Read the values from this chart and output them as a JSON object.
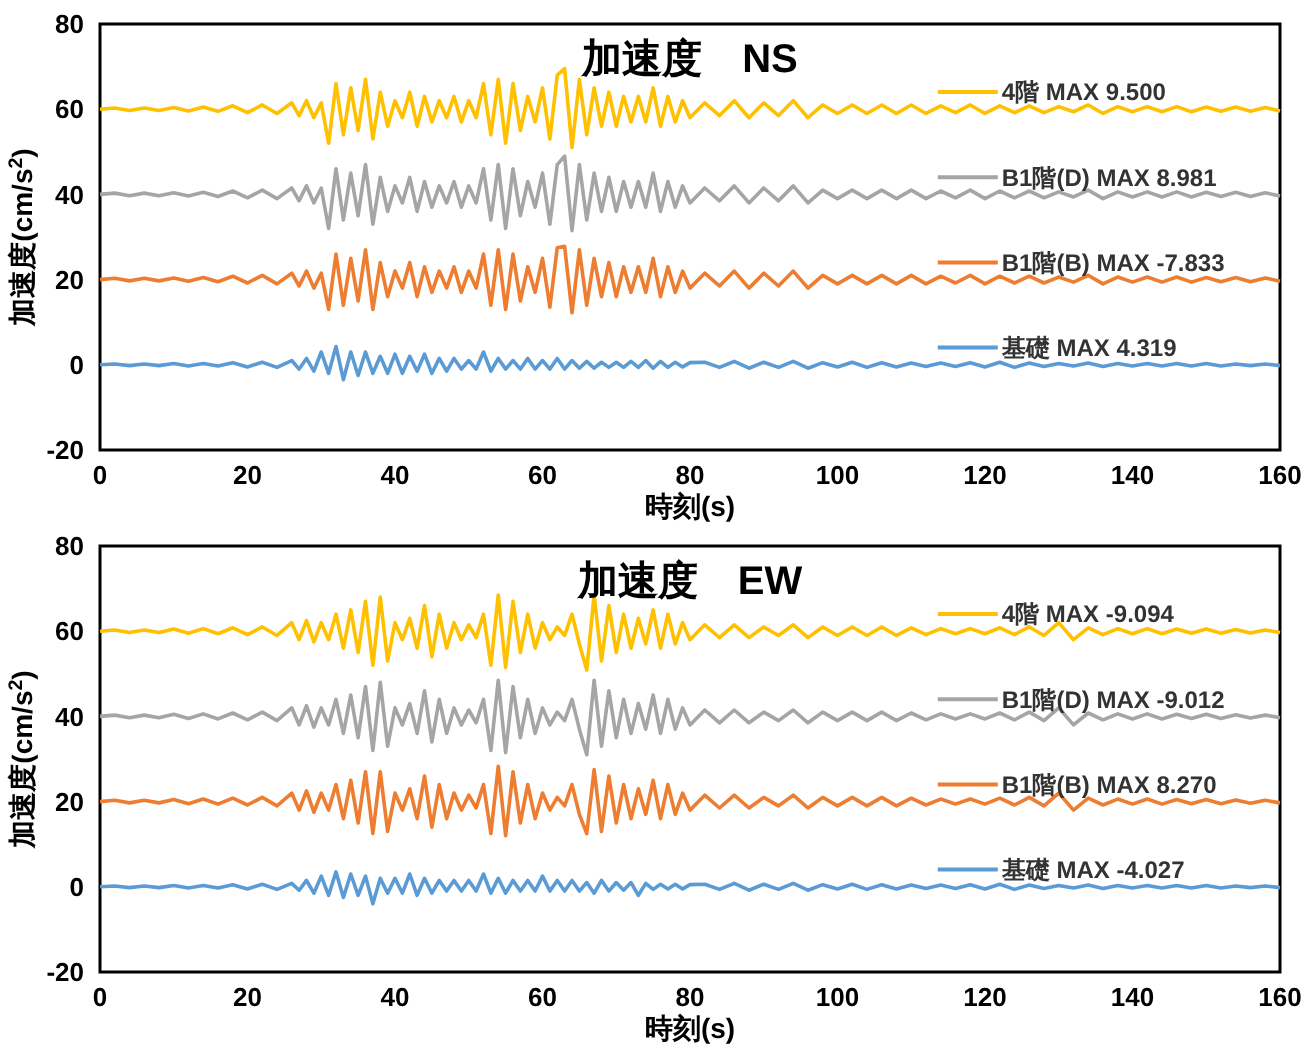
{
  "chart_data": [
    {
      "type": "line",
      "title": "加速度　NS",
      "xlabel": "時刻(s)",
      "ylabel": "加速度(cm/s$^{2}$)",
      "xlim": [
        0,
        160
      ],
      "xticks": [
        0,
        20,
        40,
        60,
        80,
        100,
        120,
        140,
        160
      ],
      "ylim": [
        -20,
        80
      ],
      "yticks": [
        -20,
        0,
        20,
        40,
        60,
        80
      ],
      "grid": false,
      "legend": "right",
      "marker": "none",
      "line_style": "solid",
      "x": [
        0,
        2,
        4,
        6,
        8,
        10,
        12,
        14,
        16,
        18,
        20,
        22,
        24,
        26,
        27,
        28,
        29,
        30,
        31,
        32,
        33,
        34,
        35,
        36,
        37,
        38,
        39,
        40,
        41,
        42,
        43,
        44,
        45,
        46,
        47,
        48,
        49,
        50,
        51,
        52,
        53,
        54,
        55,
        56,
        57,
        58,
        59,
        60,
        61,
        62,
        63,
        64,
        65,
        66,
        67,
        68,
        69,
        70,
        71,
        72,
        73,
        74,
        75,
        76,
        77,
        78,
        79,
        80,
        82,
        84,
        86,
        88,
        90,
        92,
        94,
        96,
        98,
        100,
        102,
        104,
        106,
        108,
        110,
        112,
        114,
        116,
        118,
        120,
        122,
        124,
        126,
        128,
        130,
        132,
        134,
        136,
        138,
        140,
        142,
        144,
        146,
        148,
        150,
        152,
        154,
        156,
        158,
        160
      ],
      "series": [
        {
          "name": "4階 MAX 9.500",
          "color": "#ffc000",
          "values": [
            60,
            60.3,
            59.7,
            60.3,
            59.7,
            60.4,
            59.6,
            60.5,
            59.5,
            60.8,
            59.2,
            61,
            59,
            61.5,
            58.5,
            62,
            58,
            61.5,
            52,
            66,
            54,
            65,
            55,
            67,
            53,
            64,
            56,
            62,
            58,
            64,
            56,
            63,
            57,
            62,
            58,
            63,
            57,
            62,
            58,
            66,
            54,
            67,
            52,
            66,
            55,
            63,
            57,
            65,
            53,
            68,
            69.5,
            51,
            67,
            54,
            65,
            56,
            64,
            56,
            63,
            57,
            63,
            57,
            65,
            56,
            63,
            57,
            62,
            58,
            61.5,
            58.5,
            62,
            58,
            61.5,
            58.5,
            62,
            58,
            61,
            59,
            61,
            59,
            61,
            59,
            61,
            59,
            60.8,
            59.2,
            61,
            59,
            60.8,
            59.2,
            60.8,
            59.2,
            60.6,
            59.4,
            61,
            59,
            60.6,
            59.4,
            60.6,
            59.4,
            60.6,
            59.4,
            60.5,
            59.5,
            60.5,
            59.5,
            60.4,
            59.6
          ]
        },
        {
          "name": "B1階(D) MAX 8.981",
          "color": "#a5a5a5",
          "values": [
            40,
            40.3,
            39.7,
            40.3,
            39.7,
            40.4,
            39.6,
            40.5,
            39.5,
            40.8,
            39.2,
            41,
            39,
            41.5,
            38.5,
            42,
            38,
            41.5,
            32,
            46,
            34,
            45,
            35,
            47,
            33,
            44,
            36,
            42,
            38,
            44,
            36,
            43,
            37,
            42,
            38,
            43,
            37,
            42,
            38,
            46,
            34,
            47,
            32,
            46,
            35,
            43,
            37,
            45,
            33,
            47,
            49,
            31.5,
            47,
            34,
            45,
            36,
            44,
            36,
            43,
            37,
            43,
            37,
            45,
            36,
            43,
            37,
            42,
            38,
            41.5,
            38.5,
            42,
            38,
            41.5,
            38.5,
            42,
            38,
            41,
            39,
            41,
            39,
            41,
            39,
            41,
            39,
            40.8,
            39.2,
            41,
            39,
            40.8,
            39.2,
            40.8,
            39.2,
            40.6,
            39.4,
            41,
            39,
            40.6,
            39.4,
            40.6,
            39.4,
            40.6,
            39.4,
            40.5,
            39.5,
            40.5,
            39.5,
            40.4,
            39.6
          ]
        },
        {
          "name": "B1階(B) MAX -7.833",
          "color": "#ed7d31",
          "values": [
            20,
            20.3,
            19.7,
            20.3,
            19.7,
            20.4,
            19.6,
            20.5,
            19.5,
            20.8,
            19.2,
            21,
            19,
            21.5,
            18.5,
            22,
            18,
            21.5,
            13,
            26,
            14,
            25,
            15,
            27,
            13,
            24,
            16,
            22,
            18,
            24,
            16,
            23,
            17,
            22,
            18,
            23,
            17,
            22,
            18,
            26,
            14,
            27,
            13,
            26,
            15,
            23,
            17,
            25,
            13.5,
            27.5,
            27.8,
            12.2,
            27,
            14,
            25,
            16,
            24,
            16,
            23,
            17,
            23,
            17,
            25,
            16,
            23,
            17,
            22,
            18,
            21.5,
            18.5,
            22,
            18,
            21.5,
            18.5,
            22,
            18,
            21,
            19,
            21,
            19,
            21,
            19,
            21,
            19,
            20.8,
            19.2,
            21,
            19,
            20.8,
            19.2,
            20.8,
            19.2,
            20.6,
            19.4,
            21,
            19,
            20.6,
            19.4,
            20.6,
            19.4,
            20.6,
            19.4,
            20.5,
            19.5,
            20.5,
            19.5,
            20.4,
            19.6
          ]
        },
        {
          "name": "基礎 MAX 4.319",
          "color": "#5b9bd5",
          "values": [
            0,
            0.2,
            -0.2,
            0.2,
            -0.2,
            0.3,
            -0.3,
            0.3,
            -0.3,
            0.5,
            -0.5,
            0.6,
            -0.6,
            1,
            -1,
            1.5,
            -1.5,
            3,
            -2,
            4.3,
            -3.5,
            3,
            -2.5,
            3,
            -2,
            2,
            -2,
            2.5,
            -2,
            2,
            -1.5,
            2.5,
            -2,
            1.5,
            -1.5,
            1.5,
            -1,
            1,
            -1,
            3,
            -1.5,
            1.5,
            -1,
            1,
            -1,
            1.5,
            -1,
            1,
            -1,
            1.5,
            -1,
            1,
            -0.8,
            0.8,
            -0.8,
            0.6,
            -0.6,
            0.6,
            -0.6,
            0.8,
            -0.6,
            1,
            -0.8,
            0.8,
            -0.6,
            0.6,
            -0.5,
            0.5,
            0.6,
            -0.6,
            0.8,
            -0.8,
            0.6,
            -0.6,
            0.8,
            -0.8,
            0.5,
            -0.5,
            0.6,
            -0.6,
            0.5,
            -0.5,
            0.4,
            -0.4,
            0.4,
            -0.4,
            0.5,
            -0.5,
            0.6,
            -0.6,
            0.4,
            -0.4,
            0.3,
            -0.3,
            0.4,
            -0.4,
            0.3,
            -0.3,
            0.3,
            -0.3,
            0.3,
            -0.3,
            0.3,
            -0.3,
            0.2,
            -0.2,
            0.2,
            -0.2
          ]
        }
      ]
    },
    {
      "type": "line",
      "title": "加速度　EW",
      "xlabel": "時刻(s)",
      "ylabel": "加速度(cm/s$^{2}$)",
      "xlim": [
        0,
        160
      ],
      "xticks": [
        0,
        20,
        40,
        60,
        80,
        100,
        120,
        140,
        160
      ],
      "ylim": [
        -20,
        80
      ],
      "yticks": [
        -20,
        0,
        20,
        40,
        60,
        80
      ],
      "grid": false,
      "legend": "right",
      "marker": "none",
      "line_style": "solid",
      "x": [
        0,
        2,
        4,
        6,
        8,
        10,
        12,
        14,
        16,
        18,
        20,
        22,
        24,
        26,
        27,
        28,
        29,
        30,
        31,
        32,
        33,
        34,
        35,
        36,
        37,
        38,
        39,
        40,
        41,
        42,
        43,
        44,
        45,
        46,
        47,
        48,
        49,
        50,
        51,
        52,
        53,
        54,
        55,
        56,
        57,
        58,
        59,
        60,
        61,
        62,
        63,
        64,
        65,
        66,
        67,
        68,
        69,
        70,
        71,
        72,
        73,
        74,
        75,
        76,
        77,
        78,
        79,
        80,
        82,
        84,
        86,
        88,
        90,
        92,
        94,
        96,
        98,
        100,
        102,
        104,
        106,
        108,
        110,
        112,
        114,
        116,
        118,
        120,
        122,
        124,
        126,
        128,
        130,
        132,
        134,
        136,
        138,
        140,
        142,
        144,
        146,
        148,
        150,
        152,
        154,
        156,
        158,
        160
      ],
      "series": [
        {
          "name": "4階 MAX -9.094",
          "color": "#ffc000",
          "values": [
            60,
            60.3,
            59.7,
            60.3,
            59.7,
            60.5,
            59.5,
            60.6,
            59.4,
            60.8,
            59.2,
            61,
            59,
            62,
            58,
            62.5,
            57.5,
            62,
            58,
            64,
            56,
            65,
            55,
            67,
            52,
            68,
            53,
            62,
            58,
            63,
            56,
            66,
            54,
            64,
            56,
            62,
            58,
            61.5,
            58.5,
            64,
            52,
            68.5,
            51.5,
            67,
            55,
            64,
            56,
            62,
            58,
            61,
            59,
            64,
            57,
            50.9,
            68.5,
            53,
            66,
            55,
            64,
            56,
            63,
            57,
            65,
            56,
            64,
            57,
            62,
            58,
            61.5,
            58.5,
            61.5,
            58.5,
            61,
            59,
            61.5,
            58.5,
            61,
            59,
            61,
            59,
            61,
            59,
            60.8,
            59.2,
            60.6,
            59.4,
            60.6,
            59.4,
            60.8,
            59.2,
            61,
            59,
            62,
            58,
            60.8,
            59.2,
            60.6,
            59.4,
            60.6,
            59.4,
            60.5,
            59.5,
            60.5,
            59.5,
            60.4,
            59.6,
            60.3,
            59.7
          ]
        },
        {
          "name": "B1階(D) MAX -9.012",
          "color": "#a5a5a5",
          "values": [
            40,
            40.3,
            39.7,
            40.3,
            39.7,
            40.5,
            39.5,
            40.6,
            39.4,
            40.8,
            39.2,
            41,
            39,
            42,
            38,
            42.5,
            37.5,
            42,
            38,
            44,
            36,
            45,
            35,
            47,
            32,
            48,
            33,
            42,
            38,
            43,
            36,
            46,
            34,
            44,
            36,
            42,
            38,
            41.5,
            38.5,
            44,
            32,
            48.5,
            31.5,
            47,
            35,
            44,
            36,
            42,
            38,
            41,
            39,
            44,
            37,
            31,
            48.5,
            33,
            46,
            35,
            44,
            36,
            43,
            37,
            45,
            36,
            44,
            37,
            42,
            38,
            41.5,
            38.5,
            41.5,
            38.5,
            41,
            39,
            41.5,
            38.5,
            41,
            39,
            41,
            39,
            41,
            39,
            40.8,
            39.2,
            40.6,
            39.4,
            40.6,
            39.4,
            40.8,
            39.2,
            41,
            39,
            42,
            38,
            40.8,
            39.2,
            40.6,
            39.4,
            40.6,
            39.4,
            40.5,
            39.5,
            40.5,
            39.5,
            40.4,
            39.6,
            40.3,
            39.7
          ]
        },
        {
          "name": "B1階(B) MAX 8.270",
          "color": "#ed7d31",
          "values": [
            20,
            20.3,
            19.7,
            20.3,
            19.7,
            20.5,
            19.5,
            20.6,
            19.4,
            20.8,
            19.2,
            21,
            19,
            22,
            18,
            22.5,
            17.5,
            22,
            18,
            24,
            16,
            25,
            15,
            27,
            12.5,
            27,
            13,
            22,
            18,
            23,
            16,
            26,
            14,
            24,
            16,
            22,
            18,
            21.5,
            18.5,
            24,
            12.5,
            28.3,
            12,
            27,
            15,
            24,
            16,
            22,
            18,
            21,
            19,
            24,
            17,
            12.5,
            27.5,
            13,
            26,
            15,
            24,
            16,
            23,
            17,
            25,
            16,
            24,
            17,
            22,
            18,
            21.5,
            18.5,
            21.5,
            18.5,
            21,
            19,
            21.5,
            18.5,
            21,
            19,
            21,
            19,
            21,
            19,
            20.8,
            19.2,
            20.6,
            19.4,
            20.6,
            19.4,
            20.8,
            19.2,
            21,
            19,
            22,
            18,
            20.8,
            19.2,
            20.6,
            19.4,
            20.6,
            19.4,
            20.5,
            19.5,
            20.5,
            19.5,
            20.4,
            19.6,
            20.3,
            19.7
          ]
        },
        {
          "name": "基礎 MAX -4.027",
          "color": "#5b9bd5",
          "values": [
            0,
            0.2,
            -0.2,
            0.2,
            -0.2,
            0.3,
            -0.3,
            0.3,
            -0.3,
            0.5,
            -0.5,
            0.6,
            -0.6,
            0.8,
            -0.8,
            1.5,
            -1.5,
            2.5,
            -2,
            3.5,
            -2.5,
            3,
            -2,
            2.5,
            -4,
            2,
            -1.5,
            2,
            -1.5,
            3,
            -2,
            2,
            -1.5,
            1.5,
            -1,
            1.5,
            -1,
            1.5,
            -1,
            3,
            -1.5,
            2,
            -1.5,
            1.5,
            -1,
            1.5,
            -1,
            2.5,
            -1,
            1.5,
            -1,
            1.5,
            -1,
            1,
            -1.5,
            1.5,
            -1,
            1,
            -0.8,
            1,
            -2,
            0.8,
            -0.6,
            0.6,
            -0.5,
            0.6,
            -0.5,
            0.5,
            0.6,
            -0.6,
            0.8,
            -0.8,
            0.6,
            -0.6,
            0.8,
            -0.8,
            0.5,
            -0.5,
            0.6,
            -0.6,
            0.5,
            -0.5,
            0.4,
            -0.4,
            0.4,
            -0.4,
            0.5,
            -0.5,
            0.6,
            -0.6,
            0.4,
            -0.4,
            0.3,
            -0.3,
            0.4,
            -0.4,
            0.3,
            -0.3,
            0.3,
            -0.3,
            0.3,
            -0.3,
            0.3,
            -0.3,
            0.2,
            -0.2,
            0.2,
            -0.2
          ]
        }
      ]
    }
  ]
}
